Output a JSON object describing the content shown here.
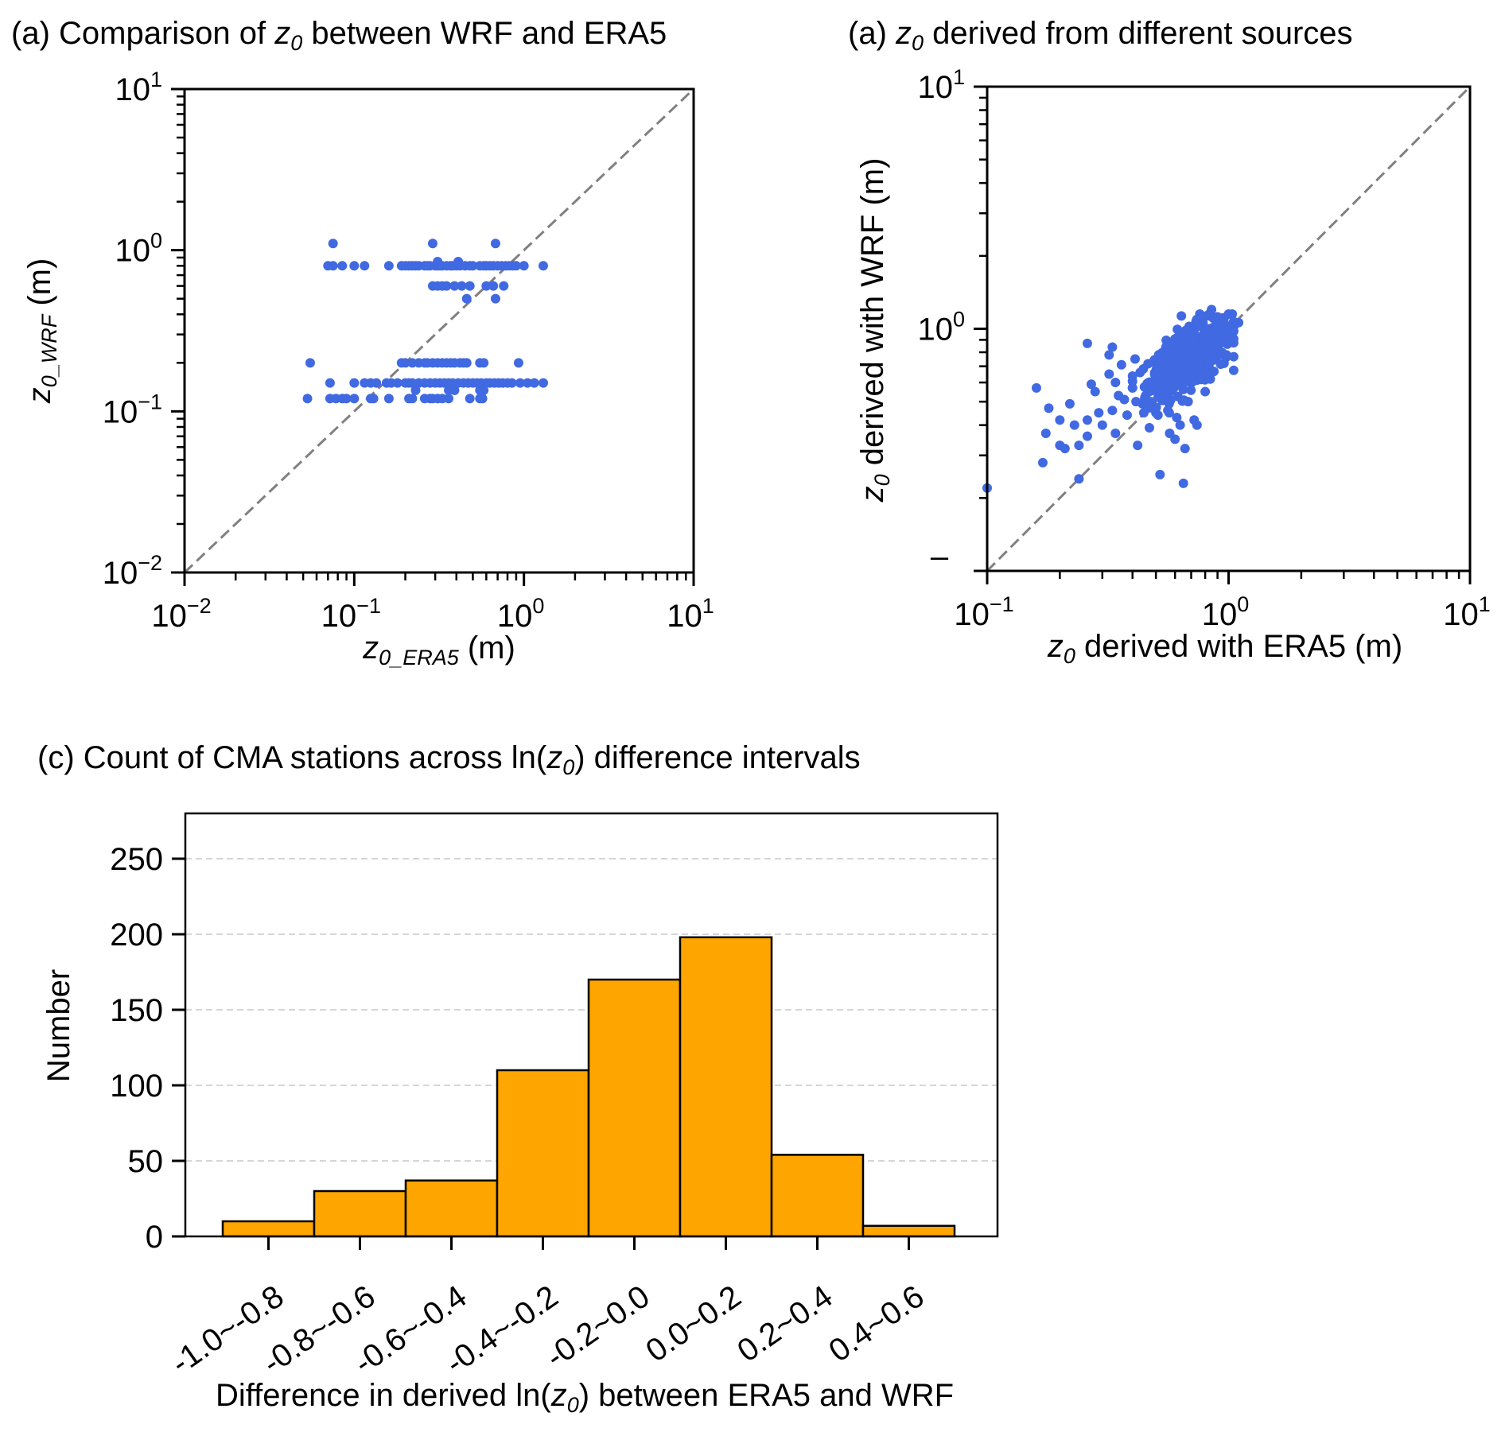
{
  "chart_data": [
    {
      "id": "panel_a",
      "type": "scatter",
      "title_prefix": "(a) Comparison of ",
      "title_var": "z",
      "title_var_sub": "0",
      "title_suffix": " between WRF and ERA5",
      "xlabel_var": "z",
      "xlabel_sub": "0_ERA5",
      "xlabel_unit": " (m)",
      "ylabel_var": "z",
      "ylabel_sub": "0_WRF",
      "ylabel_unit": " (m)",
      "xscale": "log",
      "yscale": "log",
      "xlim": [
        0.01,
        10
      ],
      "ylim": [
        0.01,
        10
      ],
      "xticks": [
        {
          "base": "10",
          "exp": "−2",
          "value": 0.01
        },
        {
          "base": "10",
          "exp": "−1",
          "value": 0.1
        },
        {
          "base": "10",
          "exp": "0",
          "value": 1
        },
        {
          "base": "10",
          "exp": "1",
          "value": 10
        }
      ],
      "yticks": [
        {
          "base": "10",
          "exp": "−2",
          "value": 0.01
        },
        {
          "base": "10",
          "exp": "−1",
          "value": 0.1
        },
        {
          "base": "10",
          "exp": "0",
          "value": 1
        },
        {
          "base": "10",
          "exp": "1",
          "value": 10
        }
      ],
      "reference_line": "1:1 dashed",
      "marker_color": "#4169E1",
      "line_color": "#808080",
      "rows": [
        {
          "y": 1.1,
          "x": [
            0.075,
            0.29,
            0.68
          ]
        },
        {
          "y": 0.8,
          "x": [
            0.07,
            0.075,
            0.085,
            0.1,
            0.115,
            0.16,
            0.19,
            0.2,
            0.21,
            0.22,
            0.23,
            0.24,
            0.26,
            0.27,
            0.28,
            0.3,
            0.31,
            0.32,
            0.33,
            0.35,
            0.37,
            0.38,
            0.4,
            0.42,
            0.45,
            0.48,
            0.5,
            0.55,
            0.58,
            0.6,
            0.63,
            0.66,
            0.7,
            0.74,
            0.78,
            0.82,
            0.86,
            0.9,
            1.0,
            1.3
          ]
        },
        {
          "y": 0.85,
          "x": [
            0.31,
            0.41
          ]
        },
        {
          "y": 0.6,
          "x": [
            0.29,
            0.31,
            0.33,
            0.35,
            0.39,
            0.43,
            0.48,
            0.6,
            0.66,
            0.76
          ]
        },
        {
          "y": 0.5,
          "x": [
            0.46,
            0.68
          ]
        },
        {
          "y": 0.2,
          "x": [
            0.055,
            0.19,
            0.2,
            0.22,
            0.24,
            0.26,
            0.27,
            0.29,
            0.31,
            0.33,
            0.35,
            0.37,
            0.39,
            0.42,
            0.44,
            0.46,
            0.55,
            0.58,
            0.93
          ]
        },
        {
          "y": 0.15,
          "x": [
            0.072,
            0.1,
            0.115,
            0.125,
            0.135,
            0.155,
            0.165,
            0.18,
            0.2,
            0.21,
            0.22,
            0.24,
            0.26,
            0.28,
            0.3,
            0.32,
            0.34,
            0.36,
            0.38,
            0.41,
            0.44,
            0.47,
            0.5,
            0.53,
            0.56,
            0.6,
            0.63,
            0.67,
            0.71,
            0.75,
            0.8,
            0.85,
            0.95,
            1.05,
            1.15,
            1.3
          ]
        },
        {
          "y": 0.135,
          "x": [
            0.23,
            0.36,
            0.39,
            0.55,
            0.58
          ]
        },
        {
          "y": 0.12,
          "x": [
            0.053,
            0.072,
            0.078,
            0.085,
            0.09,
            0.1,
            0.125,
            0.13,
            0.16,
            0.21,
            0.22,
            0.26,
            0.28,
            0.29,
            0.31,
            0.33,
            0.36,
            0.48,
            0.55,
            0.57
          ]
        }
      ]
    },
    {
      "id": "panel_b",
      "type": "scatter",
      "title_prefix": "(a) ",
      "title_var": "z",
      "title_var_sub": "0",
      "title_suffix": " derived from different sources",
      "xlabel_var": "z",
      "xlabel_sub": "0",
      "xlabel_unit": " derived with ERA5 (m)",
      "ylabel_var": "z",
      "ylabel_sub": "0",
      "ylabel_unit": " derived with WRF (m)",
      "xscale": "log",
      "yscale": "log",
      "xlim": [
        0.1,
        10
      ],
      "ylim": [
        0.1,
        10
      ],
      "xticks": [
        {
          "base": "10",
          "exp": "−1",
          "value": 0.1
        },
        {
          "base": "10",
          "exp": "0",
          "value": 1
        },
        {
          "base": "10",
          "exp": "1",
          "value": 10
        }
      ],
      "yticks": [
        {
          "base": "10",
          "exp": "1",
          "value": 10
        },
        {
          "base": "10",
          "exp": "0",
          "value": 1
        }
      ],
      "y_bottom_tick_label": "–",
      "reference_line": "1:1 dashed",
      "marker_color": "#4169E1",
      "line_color": "#808080",
      "outliers": [
        [
          0.1,
          0.22
        ],
        [
          0.16,
          0.57
        ],
        [
          0.17,
          0.28
        ],
        [
          0.175,
          0.37
        ],
        [
          0.18,
          0.47
        ],
        [
          0.2,
          0.33
        ],
        [
          0.2,
          0.42
        ],
        [
          0.21,
          0.32
        ],
        [
          0.22,
          0.49
        ],
        [
          0.23,
          0.4
        ],
        [
          0.24,
          0.24
        ],
        [
          0.24,
          0.33
        ],
        [
          0.26,
          0.87
        ],
        [
          0.26,
          0.42
        ],
        [
          0.26,
          0.36
        ],
        [
          0.27,
          0.59
        ],
        [
          0.28,
          0.55
        ],
        [
          0.29,
          0.45
        ],
        [
          0.3,
          0.4
        ],
        [
          0.32,
          0.78
        ],
        [
          0.33,
          0.84
        ],
        [
          0.32,
          0.65
        ],
        [
          0.33,
          0.46
        ],
        [
          0.34,
          0.37
        ],
        [
          0.34,
          0.6
        ],
        [
          0.35,
          0.53
        ],
        [
          0.36,
          0.71
        ],
        [
          0.37,
          0.51
        ],
        [
          0.38,
          0.44
        ],
        [
          0.4,
          0.57
        ],
        [
          0.41,
          0.75
        ],
        [
          0.42,
          0.33
        ],
        [
          0.43,
          0.66
        ],
        [
          0.44,
          0.49
        ],
        [
          0.45,
          0.52
        ],
        [
          0.47,
          0.39
        ],
        [
          0.48,
          0.58
        ],
        [
          0.5,
          0.45
        ],
        [
          0.51,
          0.44
        ],
        [
          0.52,
          0.25
        ],
        [
          0.53,
          0.79
        ],
        [
          0.55,
          0.84
        ],
        [
          0.56,
          0.46
        ],
        [
          0.57,
          0.37
        ],
        [
          0.6,
          0.35
        ],
        [
          0.61,
          0.43
        ],
        [
          0.63,
          0.4
        ],
        [
          0.65,
          0.23
        ],
        [
          0.66,
          0.32
        ],
        [
          0.68,
          0.5
        ],
        [
          0.72,
          0.42
        ],
        [
          0.74,
          0.4
        ],
        [
          0.8,
          0.55
        ],
        [
          0.84,
          0.62
        ],
        [
          1.05,
          1.02
        ],
        [
          1.1,
          1.06
        ],
        [
          1.0,
          1.15
        ],
        [
          0.85,
          1.2
        ],
        [
          0.9,
          1.12
        ],
        [
          0.95,
          1.1
        ],
        [
          1.02,
          0.9
        ],
        [
          0.98,
          0.78
        ],
        [
          0.76,
          1.15
        ]
      ],
      "cluster": {
        "x_range": [
          0.4,
          1.05
        ],
        "y_range": [
          0.45,
          1.15
        ],
        "approx_points": 500
      }
    },
    {
      "id": "panel_c",
      "type": "bar",
      "title_prefix": "(c) Count of CMA stations across ln(",
      "title_var": "z",
      "title_var_sub": "0",
      "title_suffix": ") difference intervals",
      "xlabel_prefix": "Difference in derived ln(",
      "xlabel_var": "z",
      "xlabel_sub": "0",
      "xlabel_suffix": ") between ERA5 and WRF",
      "ylabel": "Number",
      "categories": [
        "-1.0~-0.8",
        "-0.8~-0.6",
        "-0.6~-0.4",
        "-0.4~-0.2",
        "-0.2~0.0",
        "0.0~0.2",
        "0.2~0.4",
        "0.4~0.6"
      ],
      "values": [
        10,
        30,
        37,
        110,
        170,
        198,
        54,
        7
      ],
      "ylim": [
        0,
        280
      ],
      "yticks": [
        0,
        50,
        100,
        150,
        200,
        250
      ],
      "grid": "horizontal dashed",
      "bar_color": "#FFA500",
      "edge_color": "#000000",
      "grid_color": "#c8c8c8"
    }
  ]
}
